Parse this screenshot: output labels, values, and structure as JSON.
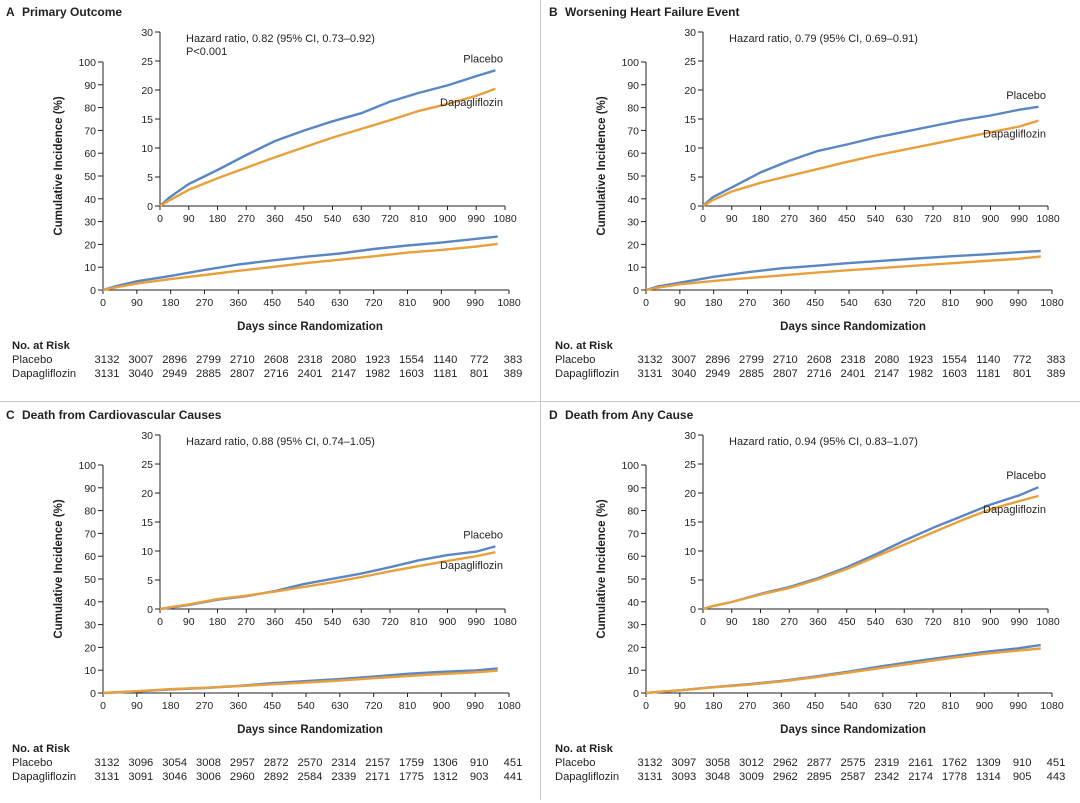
{
  "x_axis_label": "Days since Randomization",
  "y_axis_label": "Cumulative Incidence (%)",
  "risk_table_title": "No. at Risk",
  "colors": {
    "placebo": "#5b86c4",
    "dapagliflozin": "#e8a03c",
    "axis": "#231f20"
  },
  "chart_data": [
    {
      "type": "line",
      "panel_letter": "A",
      "title": "Primary Outcome",
      "annotation": [
        "Hazard ratio, 0.82 (95% CI, 0.73–0.92)",
        "P<0.001"
      ],
      "xlabel": "Days since Randomization",
      "ylabel": "Cumulative Incidence (%)",
      "xlim": [
        0,
        1080
      ],
      "ylim": [
        0,
        100
      ],
      "inset_ylim": [
        0,
        30
      ],
      "x_ticks": [
        0,
        90,
        180,
        270,
        360,
        450,
        540,
        630,
        720,
        810,
        900,
        990,
        1080
      ],
      "y_ticks": [
        0,
        10,
        20,
        30,
        40,
        50,
        60,
        70,
        80,
        90,
        100
      ],
      "inset_y_ticks": [
        0,
        5,
        10,
        15,
        20,
        25,
        30
      ],
      "x": [
        0,
        30,
        90,
        180,
        270,
        360,
        450,
        540,
        630,
        720,
        810,
        900,
        990,
        1050
      ],
      "series": [
        {
          "name": "Placebo",
          "values": [
            0,
            1.5,
            3.8,
            6.2,
            8.8,
            11.2,
            13.0,
            14.6,
            16.0,
            18.0,
            19.5,
            20.8,
            22.4,
            23.4
          ]
        },
        {
          "name": "Dapagliflozin",
          "values": [
            0,
            1.0,
            2.8,
            4.8,
            6.6,
            8.4,
            10.1,
            11.8,
            13.3,
            14.8,
            16.4,
            17.6,
            19.0,
            20.2
          ]
        }
      ],
      "risk_table": {
        "times": [
          0,
          90,
          180,
          270,
          360,
          450,
          540,
          630,
          720,
          810,
          900,
          990,
          1080
        ],
        "rows": [
          {
            "group": "Placebo",
            "values": [
              "3132",
              "3007",
              "2896",
              "2799",
              "2710",
              "2608",
              "2318",
              "2080",
              "1923",
              "1554",
              "1140",
              "772",
              "383"
            ]
          },
          {
            "group": "Dapagliflozin",
            "values": [
              "3131",
              "3040",
              "2949",
              "2885",
              "2807",
              "2716",
              "2401",
              "2147",
              "1982",
              "1603",
              "1181",
              "801",
              "389"
            ]
          }
        ]
      }
    },
    {
      "type": "line",
      "panel_letter": "B",
      "title": "Worsening Heart Failure Event",
      "annotation": [
        "Hazard ratio, 0.79 (95% CI, 0.69–0.91)"
      ],
      "xlabel": "Days since Randomization",
      "ylabel": "Cumulative Incidence (%)",
      "xlim": [
        0,
        1080
      ],
      "ylim": [
        0,
        100
      ],
      "inset_ylim": [
        0,
        30
      ],
      "x_ticks": [
        0,
        90,
        180,
        270,
        360,
        450,
        540,
        630,
        720,
        810,
        900,
        990,
        1080
      ],
      "y_ticks": [
        0,
        10,
        20,
        30,
        40,
        50,
        60,
        70,
        80,
        90,
        100
      ],
      "inset_y_ticks": [
        0,
        5,
        10,
        15,
        20,
        25,
        30
      ],
      "x": [
        0,
        30,
        90,
        180,
        270,
        360,
        450,
        540,
        630,
        720,
        810,
        900,
        990,
        1050
      ],
      "series": [
        {
          "name": "Placebo",
          "values": [
            0,
            1.5,
            3.2,
            5.8,
            7.8,
            9.5,
            10.6,
            11.8,
            12.8,
            13.8,
            14.8,
            15.6,
            16.6,
            17.1
          ]
        },
        {
          "name": "Dapagliflozin",
          "values": [
            0,
            1.0,
            2.5,
            4.0,
            5.2,
            6.4,
            7.6,
            8.7,
            9.7,
            10.7,
            11.7,
            12.7,
            13.7,
            14.7
          ]
        }
      ],
      "risk_table": {
        "times": [
          0,
          90,
          180,
          270,
          360,
          450,
          540,
          630,
          720,
          810,
          900,
          990,
          1080
        ],
        "rows": [
          {
            "group": "Placebo",
            "values": [
              "3132",
              "3007",
              "2896",
              "2799",
              "2710",
              "2608",
              "2318",
              "2080",
              "1923",
              "1554",
              "1140",
              "772",
              "383"
            ]
          },
          {
            "group": "Dapagliflozin",
            "values": [
              "3131",
              "3040",
              "2949",
              "2885",
              "2807",
              "2716",
              "2401",
              "2147",
              "1982",
              "1603",
              "1181",
              "801",
              "389"
            ]
          }
        ]
      }
    },
    {
      "type": "line",
      "panel_letter": "C",
      "title": "Death from Cardiovascular Causes",
      "annotation": [
        "Hazard ratio, 0.88 (95% CI, 0.74–1.05)"
      ],
      "xlabel": "Days since Randomization",
      "ylabel": "Cumulative Incidence (%)",
      "xlim": [
        0,
        1080
      ],
      "ylim": [
        0,
        100
      ],
      "inset_ylim": [
        0,
        30
      ],
      "x_ticks": [
        0,
        90,
        180,
        270,
        360,
        450,
        540,
        630,
        720,
        810,
        900,
        990,
        1080
      ],
      "y_ticks": [
        0,
        10,
        20,
        30,
        40,
        50,
        60,
        70,
        80,
        90,
        100
      ],
      "inset_y_ticks": [
        0,
        5,
        10,
        15,
        20,
        25,
        30
      ],
      "x": [
        0,
        30,
        90,
        180,
        270,
        360,
        450,
        540,
        630,
        720,
        810,
        900,
        990,
        1050
      ],
      "series": [
        {
          "name": "Placebo",
          "values": [
            0,
            0.2,
            0.7,
            1.6,
            2.2,
            3.1,
            4.3,
            5.2,
            6.1,
            7.2,
            8.4,
            9.3,
            9.9,
            10.8
          ]
        },
        {
          "name": "Dapagliflozin",
          "values": [
            0,
            0.3,
            0.8,
            1.7,
            2.3,
            3.0,
            3.8,
            4.6,
            5.5,
            6.5,
            7.4,
            8.3,
            9.1,
            9.8
          ]
        }
      ],
      "risk_table": {
        "times": [
          0,
          90,
          180,
          270,
          360,
          450,
          540,
          630,
          720,
          810,
          900,
          990,
          1080
        ],
        "rows": [
          {
            "group": "Placebo",
            "values": [
              "3132",
              "3096",
              "3054",
              "3008",
              "2957",
              "2872",
              "2570",
              "2314",
              "2157",
              "1759",
              "1306",
              "910",
              "451"
            ]
          },
          {
            "group": "Dapagliflozin",
            "values": [
              "3131",
              "3091",
              "3046",
              "3006",
              "2960",
              "2892",
              "2584",
              "2339",
              "2171",
              "1775",
              "1312",
              "903",
              "441"
            ]
          }
        ]
      }
    },
    {
      "type": "line",
      "panel_letter": "D",
      "title": "Death from Any Cause",
      "annotation": [
        "Hazard ratio, 0.94 (95% CI, 0.83–1.07)"
      ],
      "xlabel": "Days since Randomization",
      "ylabel": "Cumulative Incidence (%)",
      "xlim": [
        0,
        1080
      ],
      "ylim": [
        0,
        100
      ],
      "inset_ylim": [
        0,
        30
      ],
      "x_ticks": [
        0,
        90,
        180,
        270,
        360,
        450,
        540,
        630,
        720,
        810,
        900,
        990,
        1080
      ],
      "y_ticks": [
        0,
        10,
        20,
        30,
        40,
        50,
        60,
        70,
        80,
        90,
        100
      ],
      "inset_y_ticks": [
        0,
        5,
        10,
        15,
        20,
        25,
        30
      ],
      "x": [
        0,
        30,
        90,
        180,
        270,
        360,
        450,
        540,
        630,
        720,
        810,
        900,
        990,
        1050
      ],
      "series": [
        {
          "name": "Placebo",
          "values": [
            0,
            0.5,
            1.2,
            2.6,
            3.8,
            5.3,
            7.2,
            9.4,
            11.8,
            14.0,
            16.0,
            18.0,
            19.6,
            21.0
          ]
        },
        {
          "name": "Dapagliflozin",
          "values": [
            0,
            0.5,
            1.2,
            2.5,
            3.6,
            5.1,
            6.9,
            9.0,
            11.1,
            13.2,
            15.3,
            17.2,
            18.6,
            19.5
          ]
        }
      ],
      "risk_table": {
        "times": [
          0,
          90,
          180,
          270,
          360,
          450,
          540,
          630,
          720,
          810,
          900,
          990,
          1080
        ],
        "rows": [
          {
            "group": "Placebo",
            "values": [
              "3132",
              "3097",
              "3058",
              "3012",
              "2962",
              "2877",
              "2575",
              "2319",
              "2161",
              "1762",
              "1309",
              "910",
              "451"
            ]
          },
          {
            "group": "Dapagliflozin",
            "values": [
              "3131",
              "3093",
              "3048",
              "3009",
              "2962",
              "2895",
              "2587",
              "2342",
              "2174",
              "1778",
              "1314",
              "905",
              "443"
            ]
          }
        ]
      }
    }
  ]
}
